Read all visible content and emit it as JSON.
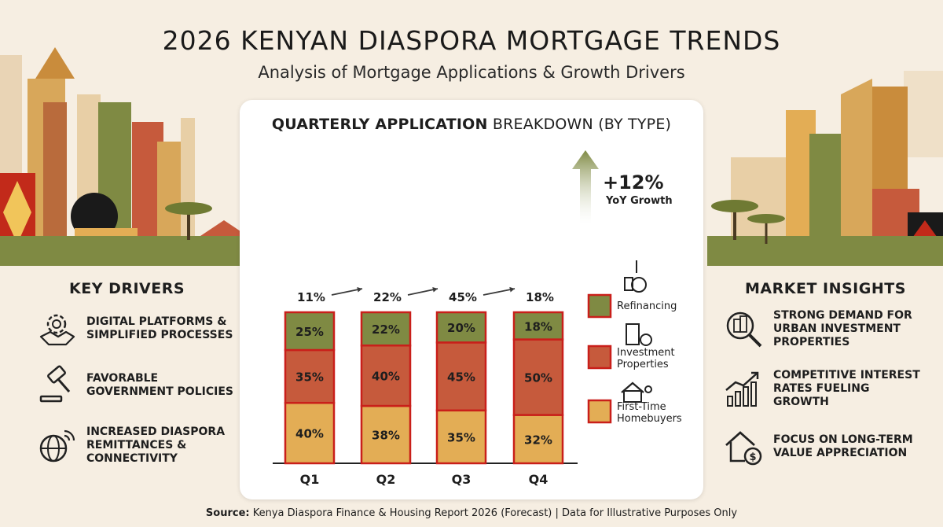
{
  "header": {
    "title": "2026 KENYAN DIASPORA MORTGAGE TRENDS",
    "subtitle": "Analysis of Mortgage Applications & Growth Drivers"
  },
  "chart_title": {
    "bold": "QUARTERLY APPLICATION",
    "rest": "BREAKDOWN (BY TYPE)"
  },
  "chart_data": {
    "type": "bar",
    "stacked": true,
    "title": "QUARTERLY APPLICATION BREAKDOWN (BY TYPE)",
    "categories": [
      "Q1",
      "Q2",
      "Q3",
      "Q4"
    ],
    "series": [
      {
        "name": "First-Time Homebuyers",
        "values": [
          40,
          38,
          35,
          32
        ],
        "labels": [
          "40%",
          "38%",
          "35%",
          "32%"
        ],
        "color": "#e3ad55"
      },
      {
        "name": "Investment Properties",
        "values": [
          35,
          40,
          45,
          50
        ],
        "labels": [
          "35%",
          "40%",
          "45%",
          "50%"
        ],
        "color": "#c65a3c"
      },
      {
        "name": "Refinancing",
        "values": [
          25,
          22,
          20,
          18
        ],
        "labels": [
          "25%",
          "22%",
          "20%",
          "18%"
        ],
        "color": "#7f8a43"
      }
    ],
    "top_labels": [
      "11%",
      "22%",
      "45%",
      "18%"
    ],
    "growth": {
      "value": "+12%",
      "label": "YoY Growth"
    },
    "legend_position": "right",
    "grid": false
  },
  "key_drivers": {
    "title": "KEY DRIVERS",
    "items": [
      {
        "text": "DIGITAL PLATFORMS & SIMPLIFIED PROCESSES",
        "icon": "gear-handshake-icon"
      },
      {
        "text": "FAVORABLE GOVERNMENT POLICIES",
        "icon": "gavel-icon"
      },
      {
        "text": "INCREASED DIASPORA REMITTANCES & CONNECTIVITY",
        "icon": "globe-signal-icon"
      }
    ]
  },
  "market_insights": {
    "title": "MARKET INSIGHTS",
    "items": [
      {
        "text": "STRONG DEMAND FOR URBAN INVESTMENT PROPERTIES",
        "icon": "magnifier-building-icon"
      },
      {
        "text": "COMPETITIVE INTEREST RATES FUELING GROWTH",
        "icon": "growth-chart-icon"
      },
      {
        "text": "FOCUS ON LONG-TERM VALUE APPRECIATION",
        "icon": "house-dollar-icon"
      }
    ]
  },
  "source": {
    "bold": "Source:",
    "text": " Kenya Diaspora Finance & Housing Report 2026 (Forecast) | Data for Illustrative Purposes Only"
  }
}
